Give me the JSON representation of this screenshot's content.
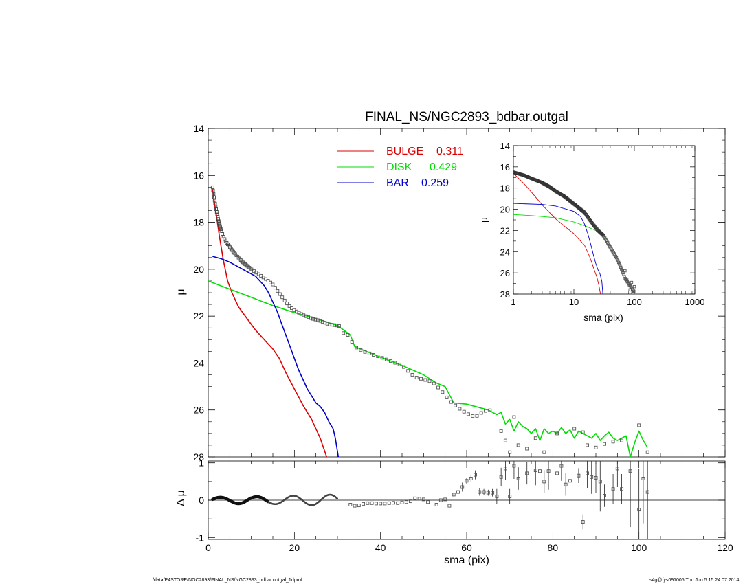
{
  "title": "FINAL_NS/NGC2893_bdbar.outgal",
  "footer": {
    "left": "/data/P4STORE/NGC2893/FINAL_NS/NGC2893_bdbar.outgal_1dprof",
    "right": "s4g@fys091005  Thu Jun  5 15:24:07 2014"
  },
  "colors": {
    "bulge": "#dd0000",
    "disk": "#00dd00",
    "bar": "#0000cc",
    "data": "#555555",
    "axes": "#000000"
  },
  "chart_data": [
    {
      "id": "main-profile",
      "type": "line",
      "title": "FINAL_NS/NGC2893_bdbar.outgal",
      "xlabel": "",
      "ylabel": "μ",
      "xlim": [
        0,
        120
      ],
      "ylim": [
        28,
        14
      ],
      "y_inverted": true,
      "yticks": [
        14,
        16,
        18,
        20,
        22,
        24,
        26,
        28
      ],
      "legend": {
        "placement": "top-center",
        "entries": [
          {
            "key": "bulge",
            "label": "BULGE",
            "value": "0.311"
          },
          {
            "key": "disk",
            "label": "DISK",
            "value": "0.429"
          },
          {
            "key": "bar",
            "label": "BAR",
            "value": "0.259"
          }
        ]
      },
      "series": [
        {
          "key": "bulge",
          "name": "BULGE",
          "x": [
            1.0,
            1.8,
            2.6,
            3.5,
            4.5,
            5.5,
            7.0,
            9.0,
            11.0,
            13.0,
            15.0,
            16.5,
            18.0,
            20.0,
            22.0,
            24.0,
            26.0,
            27.5
          ],
          "y": [
            16.6,
            17.6,
            18.6,
            19.6,
            20.5,
            21.0,
            21.6,
            22.1,
            22.6,
            23.0,
            23.4,
            23.8,
            24.4,
            25.1,
            25.8,
            26.4,
            27.2,
            28.0
          ]
        },
        {
          "key": "disk",
          "name": "DISK",
          "x": [
            0.0,
            5.0,
            10.0,
            15.0,
            20.0,
            25.0,
            30.0,
            33.0,
            34.0,
            36.0,
            40.0,
            45.0,
            50.0,
            53.0,
            55.0,
            57.0,
            60.0,
            63.0,
            65.0,
            67.0,
            68.0,
            69.0,
            70.0,
            71.0,
            72.0,
            73.0,
            74.0,
            75.0,
            76.0,
            77.0,
            78.0,
            79.0,
            80.0,
            81.0,
            82.0,
            83.0,
            84.0,
            85.0,
            86.0,
            87.0,
            88.0,
            89.0,
            90.0,
            91.0,
            92.0,
            93.0,
            94.0,
            95.0,
            96.0,
            97.0,
            98.0,
            99.0,
            100.0,
            101.0,
            102.0
          ],
          "y": [
            20.5,
            20.85,
            21.2,
            21.55,
            21.85,
            22.1,
            22.4,
            22.8,
            23.3,
            23.45,
            23.75,
            24.1,
            24.5,
            24.85,
            25.0,
            25.7,
            25.75,
            25.9,
            26.0,
            26.2,
            26.1,
            26.6,
            26.4,
            26.9,
            26.5,
            26.7,
            26.8,
            27.0,
            26.8,
            27.3,
            26.8,
            27.0,
            26.9,
            27.0,
            26.75,
            27.0,
            26.85,
            27.2,
            26.9,
            27.0,
            27.1,
            27.2,
            27.0,
            27.3,
            27.1,
            26.95,
            27.2,
            27.3,
            27.2,
            27.1,
            28.0,
            27.4,
            26.9,
            27.3,
            27.6
          ]
        },
        {
          "key": "bar",
          "name": "BAR",
          "x": [
            1.0,
            3.0,
            5.0,
            7.0,
            9.0,
            11.0,
            12.0,
            13.0,
            14.0,
            15.0,
            16.0,
            17.0,
            18.0,
            19.0,
            20.0,
            21.0,
            22.0,
            23.0,
            24.0,
            25.0,
            26.0,
            27.0,
            28.0,
            29.0,
            29.5,
            30.2
          ],
          "y": [
            19.45,
            19.55,
            19.7,
            19.9,
            20.1,
            20.3,
            20.5,
            20.7,
            21.0,
            21.4,
            21.8,
            22.3,
            22.8,
            23.3,
            23.8,
            24.3,
            24.7,
            25.1,
            25.4,
            25.7,
            25.85,
            26.1,
            26.5,
            26.8,
            27.2,
            28.0
          ]
        }
      ],
      "data_profile": {
        "x": [
          1.0,
          1.5,
          2.0,
          2.5,
          3.0,
          3.5,
          4.0,
          5.0,
          6.0,
          7.0,
          8.0,
          10.0,
          12.0,
          14.0,
          15.0,
          16.0,
          17.0,
          18.0,
          19.0,
          20.0,
          22.0,
          24.0,
          26.0,
          28.0,
          30.0,
          31.0,
          31.5,
          32.5,
          34.0,
          36.0,
          40.0,
          45.0,
          48.0,
          50.0,
          52.0,
          54.0,
          56.0,
          58.0,
          60.0,
          62.0,
          64.0,
          66.0
        ],
        "y": [
          16.5,
          17.1,
          17.6,
          18.0,
          18.35,
          18.6,
          18.8,
          19.05,
          19.3,
          19.5,
          19.7,
          20.0,
          20.25,
          20.5,
          20.65,
          20.9,
          21.15,
          21.4,
          21.6,
          21.75,
          21.95,
          22.1,
          22.2,
          22.35,
          22.4,
          22.45,
          22.8,
          22.8,
          23.3,
          23.5,
          23.75,
          24.1,
          24.6,
          24.7,
          24.8,
          25.15,
          25.6,
          25.9,
          26.15,
          26.3,
          26.05,
          26.0
        ]
      },
      "outer_points": {
        "x": [
          68.0,
          69.0,
          70.0,
          71.0,
          72.0,
          74.0,
          76.0,
          78.0,
          79.0,
          81.0,
          85.0,
          87.0,
          88.0,
          90.0,
          92.0,
          94.0,
          96.0,
          100.0,
          102.0
        ],
        "y": [
          26.9,
          27.3,
          27.8,
          26.3,
          27.5,
          27.65,
          27.2,
          27.8,
          28.1,
          27.0,
          26.8,
          26.95,
          27.5,
          27.6,
          27.45,
          27.35,
          27.3,
          26.65,
          27.8
        ]
      }
    },
    {
      "id": "residual",
      "type": "scatter",
      "xlabel": "sma (pix)",
      "ylabel": "Δ μ",
      "xlim": [
        0,
        120
      ],
      "ylim": [
        -1.05,
        1.05
      ],
      "xticks": [
        0,
        20,
        40,
        60,
        80,
        100,
        120
      ],
      "yticks": [
        -1,
        0,
        1
      ],
      "reference_line": 0,
      "inner_wave": {
        "x_start": 1.0,
        "x_end": 30.0,
        "amplitude_start": 0.07,
        "amplitude_end": 0.18,
        "period": 8.5
      },
      "points": {
        "x": [
          33,
          34,
          35,
          36,
          37,
          38,
          39,
          40,
          41,
          42,
          43,
          44,
          45,
          46,
          47,
          48,
          49,
          50,
          51,
          53,
          54,
          55,
          56,
          57,
          58,
          59,
          60,
          61,
          62,
          63,
          64,
          65,
          66,
          67,
          68,
          69,
          70,
          71,
          72,
          74,
          76,
          77,
          78,
          79,
          81,
          82,
          83,
          84,
          86,
          87,
          88,
          89,
          90,
          91,
          92,
          94,
          95,
          96,
          98,
          100,
          101,
          102
        ],
        "y": [
          -0.12,
          -0.15,
          -0.14,
          -0.1,
          -0.08,
          -0.08,
          -0.09,
          -0.09,
          -0.09,
          -0.08,
          -0.07,
          -0.08,
          -0.06,
          -0.05,
          -0.03,
          0.05,
          0.04,
          0.02,
          -0.05,
          -0.12,
          0.0,
          0.02,
          -0.15,
          0.15,
          0.22,
          0.35,
          0.52,
          0.58,
          0.68,
          0.22,
          0.22,
          0.2,
          0.2,
          0.1,
          0.62,
          0.85,
          0.1,
          0.92,
          0.58,
          0.72,
          0.8,
          0.78,
          0.5,
          0.78,
          0.72,
          0.92,
          0.42,
          0.52,
          0.66,
          -0.58,
          0.72,
          0.62,
          0.6,
          0.5,
          0.12,
          0.3,
          0.85,
          0.3,
          0.78,
          -0.25,
          0.58,
          0.22
        ],
        "err": [
          0.01,
          0.01,
          0.01,
          0.01,
          0.01,
          0.01,
          0.01,
          0.01,
          0.01,
          0.01,
          0.01,
          0.01,
          0.01,
          0.01,
          0.01,
          0.01,
          0.01,
          0.01,
          0.01,
          0.01,
          0.01,
          0.01,
          0.01,
          0.05,
          0.08,
          0.12,
          0.08,
          0.1,
          0.12,
          0.1,
          0.08,
          0.08,
          0.1,
          0.2,
          0.25,
          0.3,
          0.2,
          0.35,
          0.3,
          0.3,
          0.4,
          0.45,
          0.3,
          0.5,
          0.35,
          0.4,
          0.3,
          0.5,
          0.2,
          0.2,
          0.4,
          0.45,
          0.4,
          0.8,
          0.3,
          0.4,
          0.5,
          0.4,
          1.5,
          1.1,
          1.2,
          1.5
        ]
      }
    },
    {
      "id": "inset-log",
      "type": "line",
      "xlabel": "sma (pix)",
      "ylabel": "μ",
      "xscale": "log",
      "xlim": [
        1,
        1000
      ],
      "ylim": [
        28,
        14
      ],
      "y_inverted": true,
      "xticks": [
        1,
        10,
        100,
        1000
      ],
      "yticks": [
        14,
        16,
        18,
        20,
        22,
        24,
        26,
        28
      ],
      "series": [
        {
          "key": "bulge",
          "x": [
            1.0,
            1.5,
            2.0,
            3.0,
            5.0,
            7.0,
            10.0,
            12.0,
            15.0,
            18.0,
            20.0,
            22.0,
            24.0,
            26.0,
            27.5
          ],
          "y": [
            16.6,
            17.6,
            18.4,
            19.6,
            20.9,
            21.6,
            22.3,
            22.8,
            23.4,
            24.4,
            25.1,
            25.8,
            26.4,
            27.2,
            28.0
          ]
        },
        {
          "key": "disk",
          "x": [
            1.0,
            2.0,
            5.0,
            10.0,
            15.0,
            20.0,
            25.0,
            30.0,
            35.0
          ],
          "y": [
            20.5,
            20.6,
            20.8,
            21.2,
            21.55,
            21.85,
            22.1,
            22.4,
            22.8
          ]
        },
        {
          "key": "bar",
          "x": [
            1.0,
            3.0,
            5.0,
            10.0,
            13.0,
            15.0,
            17.0,
            19.0,
            21.0,
            23.0,
            25.0,
            27.0,
            29.0,
            30.2
          ],
          "y": [
            19.45,
            19.55,
            19.7,
            20.2,
            20.7,
            21.4,
            22.3,
            23.3,
            24.3,
            25.1,
            25.7,
            26.1,
            26.8,
            28.0
          ]
        },
        {
          "key": "data",
          "x": [
            1.0,
            1.5,
            2.0,
            3.0,
            4.0,
            5.0,
            7.0,
            10.0,
            15.0,
            20.0,
            25.0,
            30.0,
            35.0,
            40.0,
            50.0,
            60.0,
            65.0,
            70.0,
            80.0,
            90.0,
            100.0
          ],
          "y": [
            16.5,
            16.8,
            17.1,
            17.5,
            17.9,
            18.3,
            18.8,
            19.5,
            20.3,
            21.3,
            22.0,
            22.4,
            23.0,
            23.6,
            24.5,
            25.5,
            26.0,
            26.5,
            27.0,
            27.4,
            27.8
          ]
        }
      ]
    }
  ]
}
